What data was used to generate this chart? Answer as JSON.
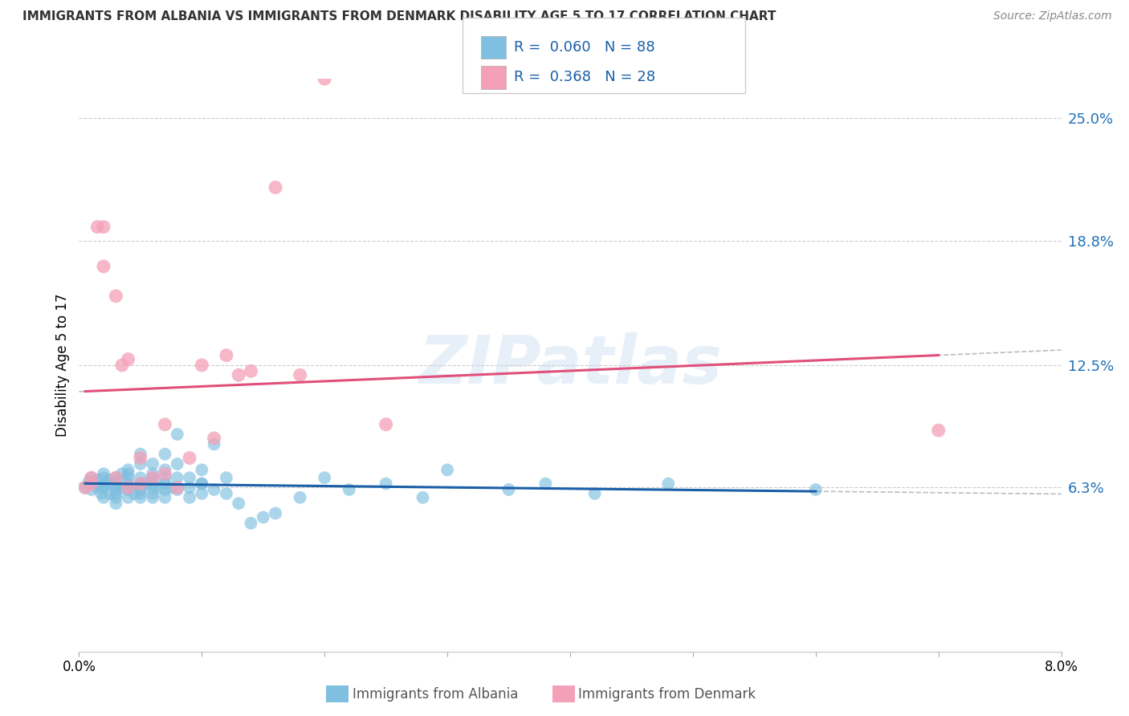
{
  "title": "IMMIGRANTS FROM ALBANIA VS IMMIGRANTS FROM DENMARK DISABILITY AGE 5 TO 17 CORRELATION CHART",
  "source": "Source: ZipAtlas.com",
  "ylabel": "Disability Age 5 to 17",
  "legend_albania": "Immigrants from Albania",
  "legend_denmark": "Immigrants from Denmark",
  "R_albania": 0.06,
  "N_albania": 88,
  "R_denmark": 0.368,
  "N_denmark": 28,
  "xlim": [
    0.0,
    0.08
  ],
  "ylim": [
    -0.02,
    0.27
  ],
  "yticks": [
    0.063,
    0.125,
    0.188,
    0.25
  ],
  "ytick_labels": [
    "6.3%",
    "12.5%",
    "18.8%",
    "25.0%"
  ],
  "xticks": [
    0.0,
    0.01,
    0.02,
    0.03,
    0.04,
    0.05,
    0.06,
    0.07,
    0.08
  ],
  "xtick_labels": [
    "0.0%",
    "",
    "",
    "",
    "",
    "",
    "",
    "",
    "8.0%"
  ],
  "color_albania": "#7fbfdf",
  "color_denmark": "#f4a0b8",
  "line_color_albania": "#1a5fa8",
  "line_color_denmark": "#e0507a",
  "watermark": "ZIPatlas",
  "watermark_color": "#c5d8ee",
  "albania_x": [
    0.0005,
    0.0008,
    0.001,
    0.001,
    0.0012,
    0.0015,
    0.0015,
    0.0018,
    0.002,
    0.002,
    0.002,
    0.002,
    0.002,
    0.0022,
    0.0025,
    0.0025,
    0.003,
    0.003,
    0.003,
    0.003,
    0.003,
    0.003,
    0.003,
    0.003,
    0.0035,
    0.0035,
    0.004,
    0.004,
    0.004,
    0.004,
    0.004,
    0.004,
    0.004,
    0.0045,
    0.005,
    0.005,
    0.005,
    0.005,
    0.005,
    0.005,
    0.005,
    0.005,
    0.0055,
    0.006,
    0.006,
    0.006,
    0.006,
    0.006,
    0.006,
    0.006,
    0.0065,
    0.007,
    0.007,
    0.007,
    0.007,
    0.007,
    0.007,
    0.0075,
    0.008,
    0.008,
    0.008,
    0.008,
    0.009,
    0.009,
    0.009,
    0.01,
    0.01,
    0.01,
    0.01,
    0.011,
    0.011,
    0.012,
    0.012,
    0.013,
    0.014,
    0.015,
    0.016,
    0.018,
    0.02,
    0.022,
    0.025,
    0.028,
    0.03,
    0.035,
    0.038,
    0.042,
    0.048,
    0.06
  ],
  "albania_y": [
    0.063,
    0.066,
    0.062,
    0.068,
    0.065,
    0.063,
    0.067,
    0.06,
    0.064,
    0.068,
    0.058,
    0.063,
    0.07,
    0.065,
    0.06,
    0.067,
    0.06,
    0.063,
    0.066,
    0.058,
    0.068,
    0.062,
    0.065,
    0.055,
    0.07,
    0.063,
    0.062,
    0.068,
    0.058,
    0.065,
    0.063,
    0.07,
    0.072,
    0.06,
    0.063,
    0.068,
    0.058,
    0.065,
    0.075,
    0.062,
    0.08,
    0.06,
    0.065,
    0.07,
    0.063,
    0.068,
    0.058,
    0.065,
    0.06,
    0.075,
    0.063,
    0.068,
    0.062,
    0.058,
    0.065,
    0.072,
    0.08,
    0.063,
    0.09,
    0.075,
    0.068,
    0.062,
    0.068,
    0.058,
    0.063,
    0.065,
    0.072,
    0.06,
    0.065,
    0.085,
    0.062,
    0.068,
    0.06,
    0.055,
    0.045,
    0.048,
    0.05,
    0.058,
    0.068,
    0.062,
    0.065,
    0.058,
    0.072,
    0.062,
    0.065,
    0.06,
    0.065,
    0.062
  ],
  "denmark_x": [
    0.0005,
    0.001,
    0.001,
    0.0015,
    0.002,
    0.002,
    0.003,
    0.003,
    0.0035,
    0.004,
    0.004,
    0.005,
    0.005,
    0.006,
    0.007,
    0.007,
    0.008,
    0.009,
    0.01,
    0.011,
    0.012,
    0.013,
    0.014,
    0.016,
    0.018,
    0.02,
    0.025,
    0.07
  ],
  "denmark_y": [
    0.063,
    0.065,
    0.068,
    0.195,
    0.195,
    0.175,
    0.16,
    0.068,
    0.125,
    0.128,
    0.063,
    0.078,
    0.065,
    0.068,
    0.095,
    0.07,
    0.063,
    0.078,
    0.125,
    0.088,
    0.13,
    0.12,
    0.122,
    0.215,
    0.12,
    0.27,
    0.095,
    0.092
  ]
}
